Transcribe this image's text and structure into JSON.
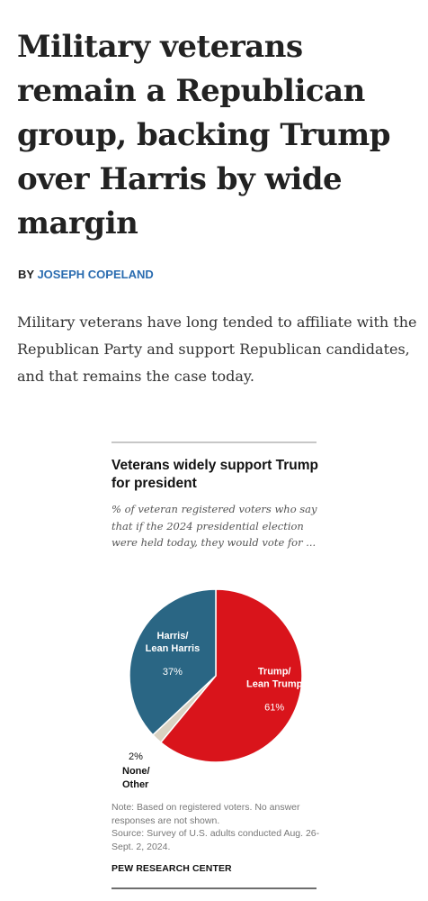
{
  "article": {
    "headline": "Military veterans remain a Republican group, backing Trump over Harris by wide margin",
    "byline_prefix": "BY ",
    "author": "JOSEPH COPELAND",
    "intro": "Military veterans have long tended to affiliate with the Republican Party and support Republican candidates, and that remains the case today."
  },
  "figure": {
    "note": "Note: Based on registered voters. No answer responses are not shown.",
    "source": "Source: Survey of U.S. adults conducted Aug. 26-Sept. 2, 2024.",
    "credit": "PEW RESEARCH CENTER"
  },
  "chart_data": {
    "type": "pie",
    "title": "Veterans widely support Trump for president",
    "subtitle": "% of veteran registered voters who say that if the 2024 presidential election were held today, they would vote for ...",
    "slices": [
      {
        "label": "Trump/ Lean Trump",
        "label_lines": [
          "Trump/",
          "Lean Trump"
        ],
        "value": 61,
        "value_label": "61%",
        "color": "#d9141b"
      },
      {
        "label": "None/ Other",
        "label_lines": [
          "None/",
          "Other"
        ],
        "value": 2,
        "value_label": "2%",
        "color": "#d9d2c2"
      },
      {
        "label": "Harris/ Lean Harris",
        "label_lines": [
          "Harris/",
          "Lean Harris"
        ],
        "value": 37,
        "value_label": "37%",
        "color": "#2a6684"
      }
    ]
  }
}
